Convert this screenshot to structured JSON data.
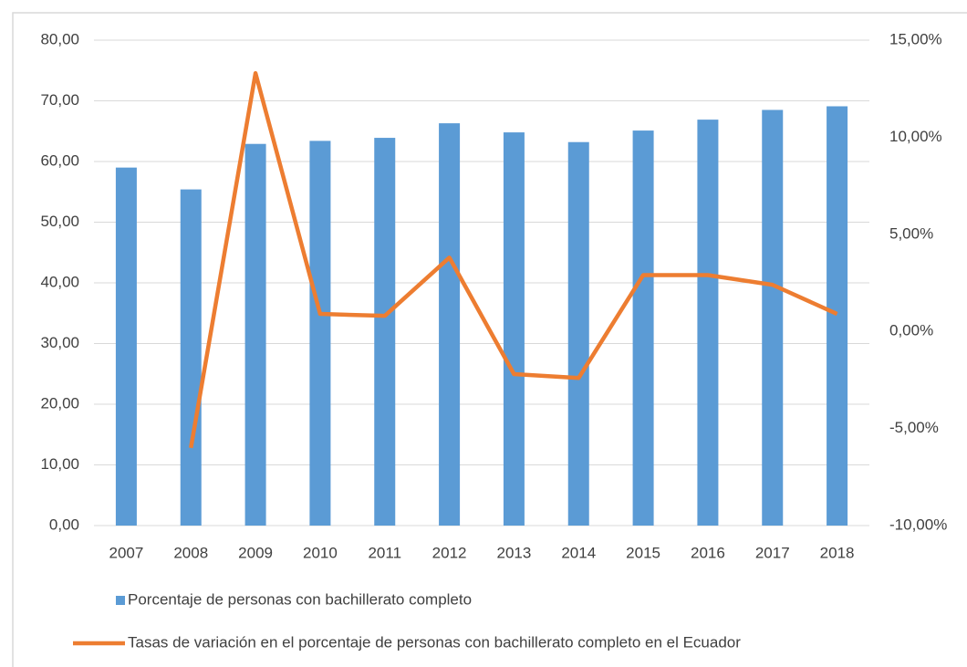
{
  "chart_data": {
    "type": "combo",
    "categories": [
      "2007",
      "2008",
      "2009",
      "2010",
      "2011",
      "2012",
      "2013",
      "2014",
      "2015",
      "2016",
      "2017",
      "2018"
    ],
    "series": [
      {
        "name": "Porcentaje de personas con bachillerato completo",
        "type": "bar",
        "axis": "y",
        "color": "#5b9bd5",
        "values": [
          59.0,
          55.4,
          62.9,
          63.4,
          63.9,
          66.3,
          64.8,
          63.2,
          65.1,
          66.9,
          68.5,
          69.1
        ]
      },
      {
        "name": "Tasas de variación en el porcentaje de personas con bachillerato completo  en el Ecuador",
        "type": "line",
        "axis": "y2",
        "color": "#ed7d31",
        "values": [
          null,
          -6.0,
          13.3,
          0.9,
          0.8,
          3.8,
          -2.2,
          -2.4,
          2.9,
          2.9,
          2.4,
          0.9
        ]
      }
    ],
    "ylim": [
      0,
      80
    ],
    "yticks": [
      {
        "value": 0,
        "label": "0,00"
      },
      {
        "value": 10,
        "label": "10,00"
      },
      {
        "value": 20,
        "label": "20,00"
      },
      {
        "value": 30,
        "label": "30,00"
      },
      {
        "value": 40,
        "label": "40,00"
      },
      {
        "value": 50,
        "label": "50,00"
      },
      {
        "value": 60,
        "label": "60,00"
      },
      {
        "value": 70,
        "label": "70,00"
      },
      {
        "value": 80,
        "label": "80,00"
      }
    ],
    "y2lim": [
      -10,
      15
    ],
    "y2ticks": [
      {
        "value": -10,
        "label": "-10,00%"
      },
      {
        "value": -5,
        "label": "-5,00%"
      },
      {
        "value": 0,
        "label": "0,00%"
      },
      {
        "value": 5,
        "label": "5,00%"
      },
      {
        "value": 10,
        "label": "10,00%"
      },
      {
        "value": 15,
        "label": "15,00%"
      }
    ],
    "grid": true,
    "legend": "bottom"
  }
}
